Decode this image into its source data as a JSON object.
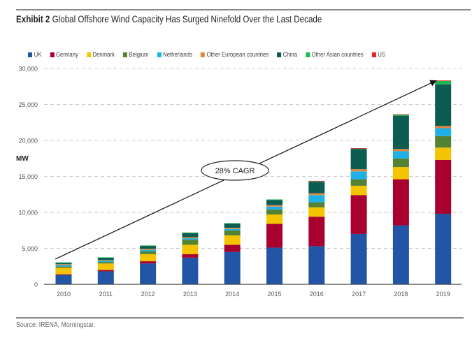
{
  "header": {
    "exhibit_label": "Exhibit 2",
    "title": "Global Offshore Wind Capacity Has Surged Ninefold Over the Last Decade"
  },
  "footer": {
    "source": "Source: IRENA, Morningstar."
  },
  "chart_data": {
    "type": "bar",
    "stacked": true,
    "title": "Global Offshore Wind Capacity Has Surged Ninefold Over the Last Decade",
    "xlabel": "",
    "ylabel": "MW",
    "ylim": [
      0,
      30000
    ],
    "yticks": [
      0,
      5000,
      10000,
      15000,
      20000,
      25000,
      30000
    ],
    "ytick_labels": [
      "0",
      "5,000",
      "10,000",
      "15,000",
      "20,000",
      "25,000",
      "30,000"
    ],
    "grid": "horizontal-dashed",
    "legend_position": "top",
    "categories": [
      "2010",
      "2011",
      "2012",
      "2013",
      "2014",
      "2015",
      "2016",
      "2017",
      "2018",
      "2019"
    ],
    "series": [
      {
        "name": "UK",
        "color": "#2355a6",
        "values": [
          1300,
          1800,
          2900,
          3700,
          4500,
          5100,
          5300,
          7000,
          8200,
          9800
        ]
      },
      {
        "name": "Germany",
        "color": "#a8002f",
        "values": [
          100,
          200,
          300,
          500,
          1000,
          3300,
          4100,
          5400,
          6400,
          7500
        ]
      },
      {
        "name": "Denmark",
        "color": "#f5c400",
        "values": [
          900,
          900,
          1000,
          1300,
          1300,
          1300,
          1300,
          1300,
          1700,
          1700
        ]
      },
      {
        "name": "Belgium",
        "color": "#548235",
        "values": [
          200,
          200,
          400,
          700,
          700,
          700,
          700,
          900,
          1200,
          1600
        ]
      },
      {
        "name": "Netherlands",
        "color": "#1fb0e6",
        "values": [
          200,
          200,
          200,
          200,
          200,
          400,
          1000,
          1100,
          1000,
          1100
        ]
      },
      {
        "name": "Other European countries",
        "color": "#e3873b",
        "values": [
          100,
          100,
          150,
          150,
          150,
          200,
          250,
          300,
          300,
          300
        ]
      },
      {
        "name": "China",
        "color": "#0d5c52",
        "values": [
          200,
          300,
          400,
          600,
          600,
          700,
          1600,
          2800,
          4600,
          5800
        ]
      },
      {
        "name": "Other Asian countries",
        "color": "#1db954",
        "values": [
          50,
          50,
          50,
          50,
          50,
          100,
          100,
          100,
          200,
          500
        ]
      },
      {
        "name": "US",
        "color": "#e8202a",
        "values": [
          0,
          0,
          0,
          0,
          0,
          0,
          30,
          30,
          30,
          30
        ]
      }
    ],
    "annotations": [
      {
        "type": "arrow",
        "from": {
          "x": "2010",
          "y": 3500
        },
        "to": {
          "x": "2019",
          "y": 28300
        }
      },
      {
        "type": "ellipse-label",
        "text": "28% CAGR"
      }
    ]
  }
}
